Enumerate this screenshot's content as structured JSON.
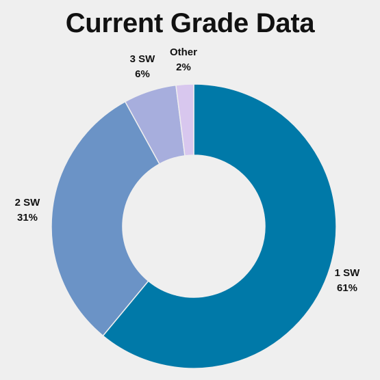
{
  "chart_data": {
    "type": "pie",
    "variant": "donut",
    "title": "Current Grade Data",
    "categories": [
      "1 SW",
      "2 SW",
      "3 SW",
      "Other"
    ],
    "values": [
      61,
      31,
      6,
      2
    ],
    "value_labels": [
      "61%",
      "31%",
      "6%",
      "2%"
    ],
    "colors": [
      "#0079a8",
      "#6b93c6",
      "#a7aedd",
      "#d8c7ee"
    ],
    "legend": "none"
  }
}
